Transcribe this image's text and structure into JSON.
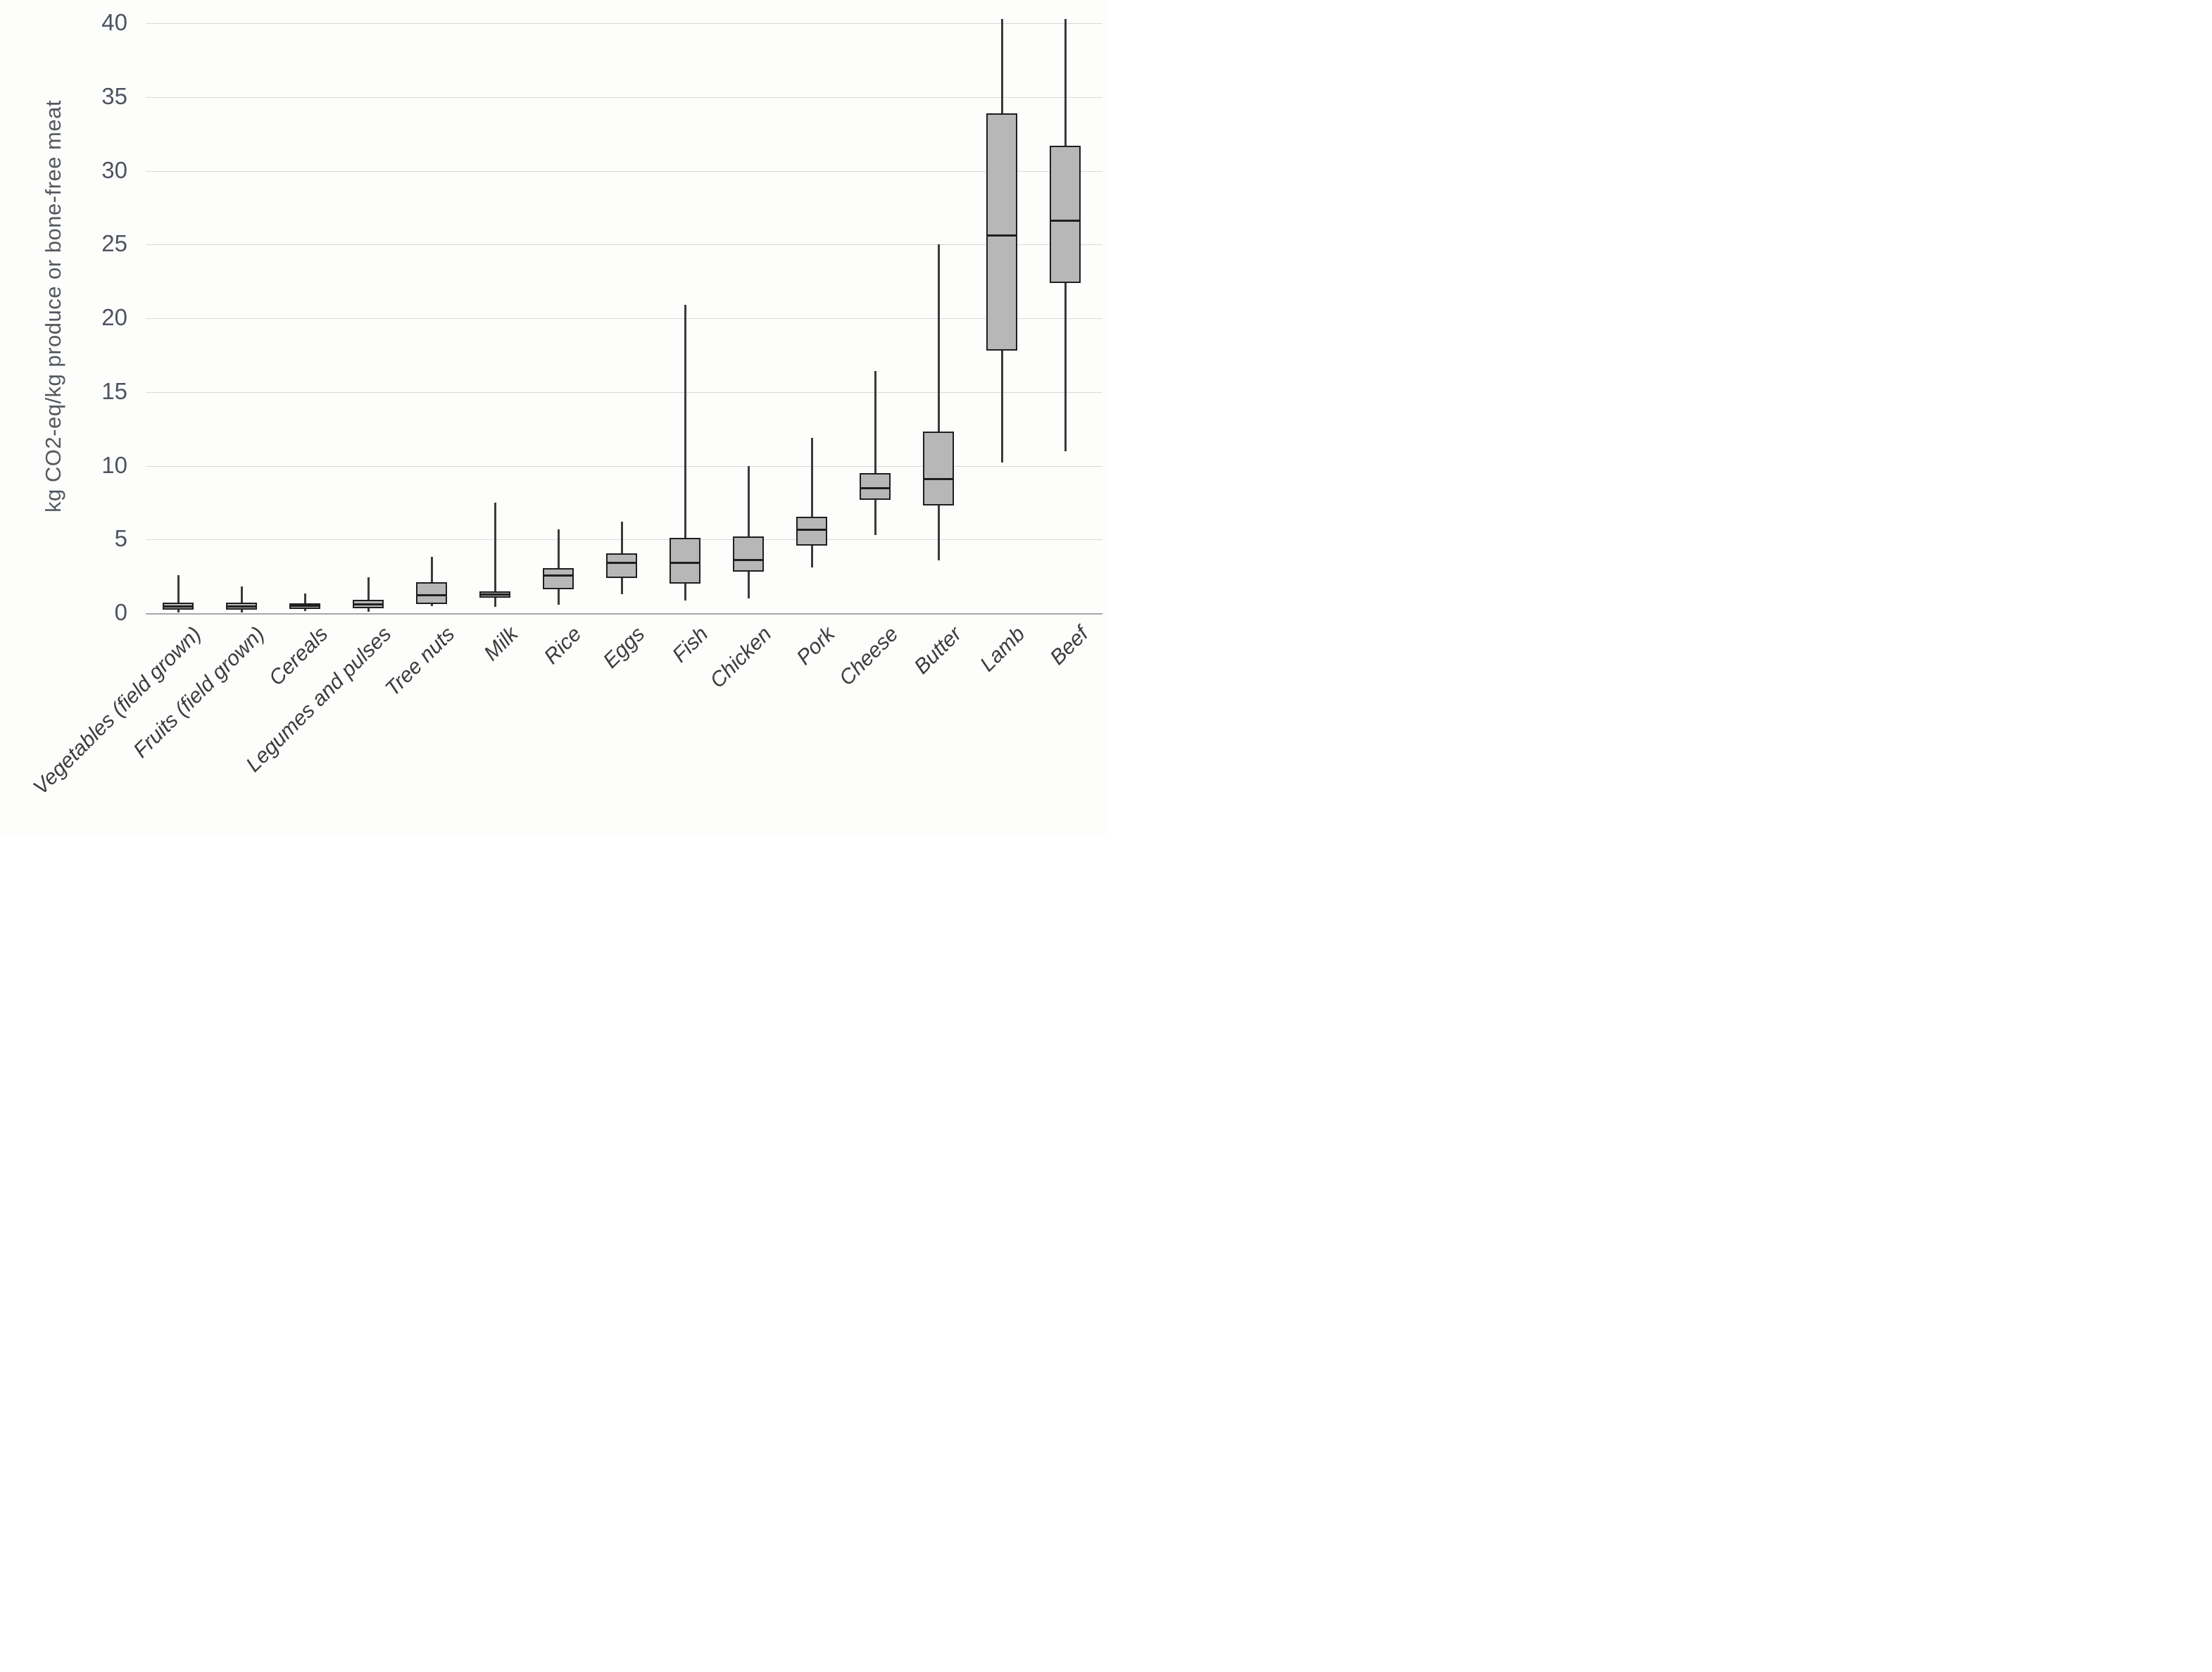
{
  "chart_data": {
    "type": "boxplot",
    "title": "",
    "xlabel": "",
    "ylabel": "kg CO2-eq/kg produce or bone-free meat",
    "ylim": [
      0,
      40
    ],
    "yticks": [
      0,
      5,
      10,
      15,
      20,
      25,
      30,
      35,
      40
    ],
    "grid": "horizontal gridlines every 5 units",
    "legend": "none",
    "box_fill_color": "#b7b7b7",
    "box_border_color": "#1f1f1f",
    "whisker_color": "#3a3a3a",
    "categories": [
      "Vegetables (field grown)",
      "Fruits (field grown)",
      "Cereals",
      "Legumes and pulses",
      "Tree nuts",
      "Milk",
      "Rice",
      "Eggs",
      "Fish",
      "Chicken",
      "Pork",
      "Cheese",
      "Butter",
      "Lamb",
      "Beef"
    ],
    "boxes": [
      {
        "category": "Vegetables (field grown)",
        "whisker_low": 0.05,
        "q1": 0.25,
        "median": 0.45,
        "q3": 0.7,
        "whisker_high": 2.6
      },
      {
        "category": "Fruits (field grown)",
        "whisker_low": 0.05,
        "q1": 0.25,
        "median": 0.45,
        "q3": 0.7,
        "whisker_high": 1.8
      },
      {
        "category": "Cereals",
        "whisker_low": 0.15,
        "q1": 0.3,
        "median": 0.5,
        "q3": 0.65,
        "whisker_high": 1.35
      },
      {
        "category": "Legumes and pulses",
        "whisker_low": 0.1,
        "q1": 0.35,
        "median": 0.6,
        "q3": 0.9,
        "whisker_high": 2.45
      },
      {
        "category": "Tree nuts",
        "whisker_low": 0.5,
        "q1": 0.6,
        "median": 1.2,
        "q3": 2.1,
        "whisker_high": 3.8
      },
      {
        "category": "Milk",
        "whisker_low": 0.45,
        "q1": 1.05,
        "median": 1.25,
        "q3": 1.5,
        "whisker_high": 7.5
      },
      {
        "category": "Rice",
        "whisker_low": 0.55,
        "q1": 1.6,
        "median": 2.55,
        "q3": 3.05,
        "whisker_high": 5.7
      },
      {
        "category": "Eggs",
        "whisker_low": 1.3,
        "q1": 2.4,
        "median": 3.4,
        "q3": 4.05,
        "whisker_high": 6.2
      },
      {
        "category": "Fish",
        "whisker_low": 0.85,
        "q1": 2.0,
        "median": 3.4,
        "q3": 5.1,
        "whisker_high": 20.9
      },
      {
        "category": "Chicken",
        "whisker_low": 1.0,
        "q1": 2.8,
        "median": 3.6,
        "q3": 5.2,
        "whisker_high": 10.0
      },
      {
        "category": "Pork",
        "whisker_low": 3.1,
        "q1": 4.6,
        "median": 5.65,
        "q3": 6.55,
        "whisker_high": 11.9
      },
      {
        "category": "Cheese",
        "whisker_low": 5.3,
        "q1": 7.7,
        "median": 8.45,
        "q3": 9.5,
        "whisker_high": 16.4
      },
      {
        "category": "Butter",
        "whisker_low": 3.6,
        "q1": 7.3,
        "median": 9.1,
        "q3": 12.3,
        "whisker_high": 25.0
      },
      {
        "category": "Lamb",
        "whisker_low": 10.2,
        "q1": 17.8,
        "median": 25.6,
        "q3": 33.9,
        "whisker_high": 40.3,
        "whisker_high_clipped_at_axis_top": true
      },
      {
        "category": "Beef",
        "whisker_low": 11.0,
        "q1": 22.4,
        "median": 26.6,
        "q3": 31.7,
        "whisker_high": 40.3,
        "whisker_high_clipped_at_axis_top": true
      }
    ]
  }
}
